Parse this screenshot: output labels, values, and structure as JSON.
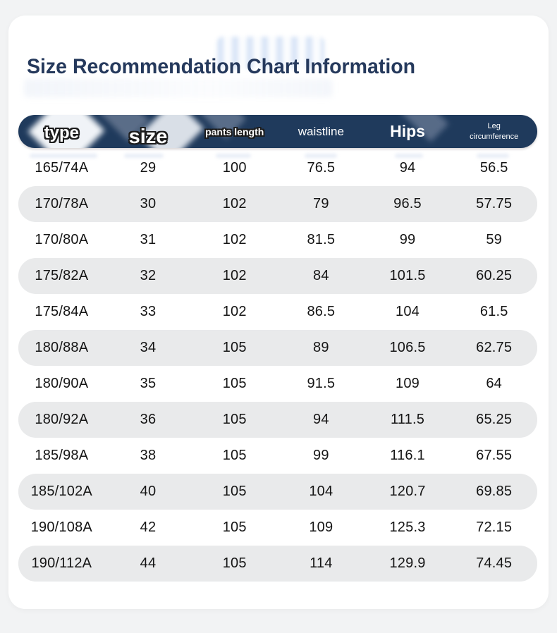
{
  "page": {
    "background_color": "#f2f3f4",
    "card_background_color": "#ffffff"
  },
  "header": {
    "title": "Size Recommendation Chart Information",
    "title_color": "#25395c"
  },
  "table": {
    "header_background_color": "#1f3a5c",
    "header_text_color": "#ffffff",
    "alt_row_background_color": "#e9eaeb",
    "columns": [
      "type",
      "size",
      "pants length",
      "waistline",
      "Hips",
      "Leg circumference"
    ],
    "rows": [
      [
        "165/74A",
        "29",
        "100",
        "76.5",
        "94",
        "56.5"
      ],
      [
        "170/78A",
        "30",
        "102",
        "79",
        "96.5",
        "57.75"
      ],
      [
        "170/80A",
        "31",
        "102",
        "81.5",
        "99",
        "59"
      ],
      [
        "175/82A",
        "32",
        "102",
        "84",
        "101.5",
        "60.25"
      ],
      [
        "175/84A",
        "33",
        "102",
        "86.5",
        "104",
        "61.5"
      ],
      [
        "180/88A",
        "34",
        "105",
        "89",
        "106.5",
        "62.75"
      ],
      [
        "180/90A",
        "35",
        "105",
        "91.5",
        "109",
        "64"
      ],
      [
        "180/92A",
        "36",
        "105",
        "94",
        "111.5",
        "65.25"
      ],
      [
        "185/98A",
        "38",
        "105",
        "99",
        "116.1",
        "67.55"
      ],
      [
        "185/102A",
        "40",
        "105",
        "104",
        "120.7",
        "69.85"
      ],
      [
        "190/108A",
        "42",
        "105",
        "109",
        "125.3",
        "72.15"
      ],
      [
        "190/112A",
        "44",
        "105",
        "114",
        "129.9",
        "74.45"
      ]
    ]
  },
  "chart_data": {
    "type": "table",
    "title": "Size Recommendation Chart Information",
    "columns": [
      "type",
      "size",
      "pants length",
      "waistline",
      "Hips",
      "Leg circumference"
    ],
    "rows": [
      [
        "165/74A",
        29,
        100,
        76.5,
        94,
        56.5
      ],
      [
        "170/78A",
        30,
        102,
        79,
        96.5,
        57.75
      ],
      [
        "170/80A",
        31,
        102,
        81.5,
        99,
        59
      ],
      [
        "175/82A",
        32,
        102,
        84,
        101.5,
        60.25
      ],
      [
        "175/84A",
        33,
        102,
        86.5,
        104,
        61.5
      ],
      [
        "180/88A",
        34,
        105,
        89,
        106.5,
        62.75
      ],
      [
        "180/90A",
        35,
        105,
        91.5,
        109,
        64
      ],
      [
        "180/92A",
        36,
        105,
        94,
        111.5,
        65.25
      ],
      [
        "185/98A",
        38,
        105,
        99,
        116.1,
        67.55
      ],
      [
        "185/102A",
        40,
        105,
        104,
        120.7,
        69.85
      ],
      [
        "190/108A",
        42,
        105,
        109,
        125.3,
        72.15
      ],
      [
        "190/112A",
        44,
        105,
        114,
        129.9,
        74.45
      ]
    ]
  }
}
